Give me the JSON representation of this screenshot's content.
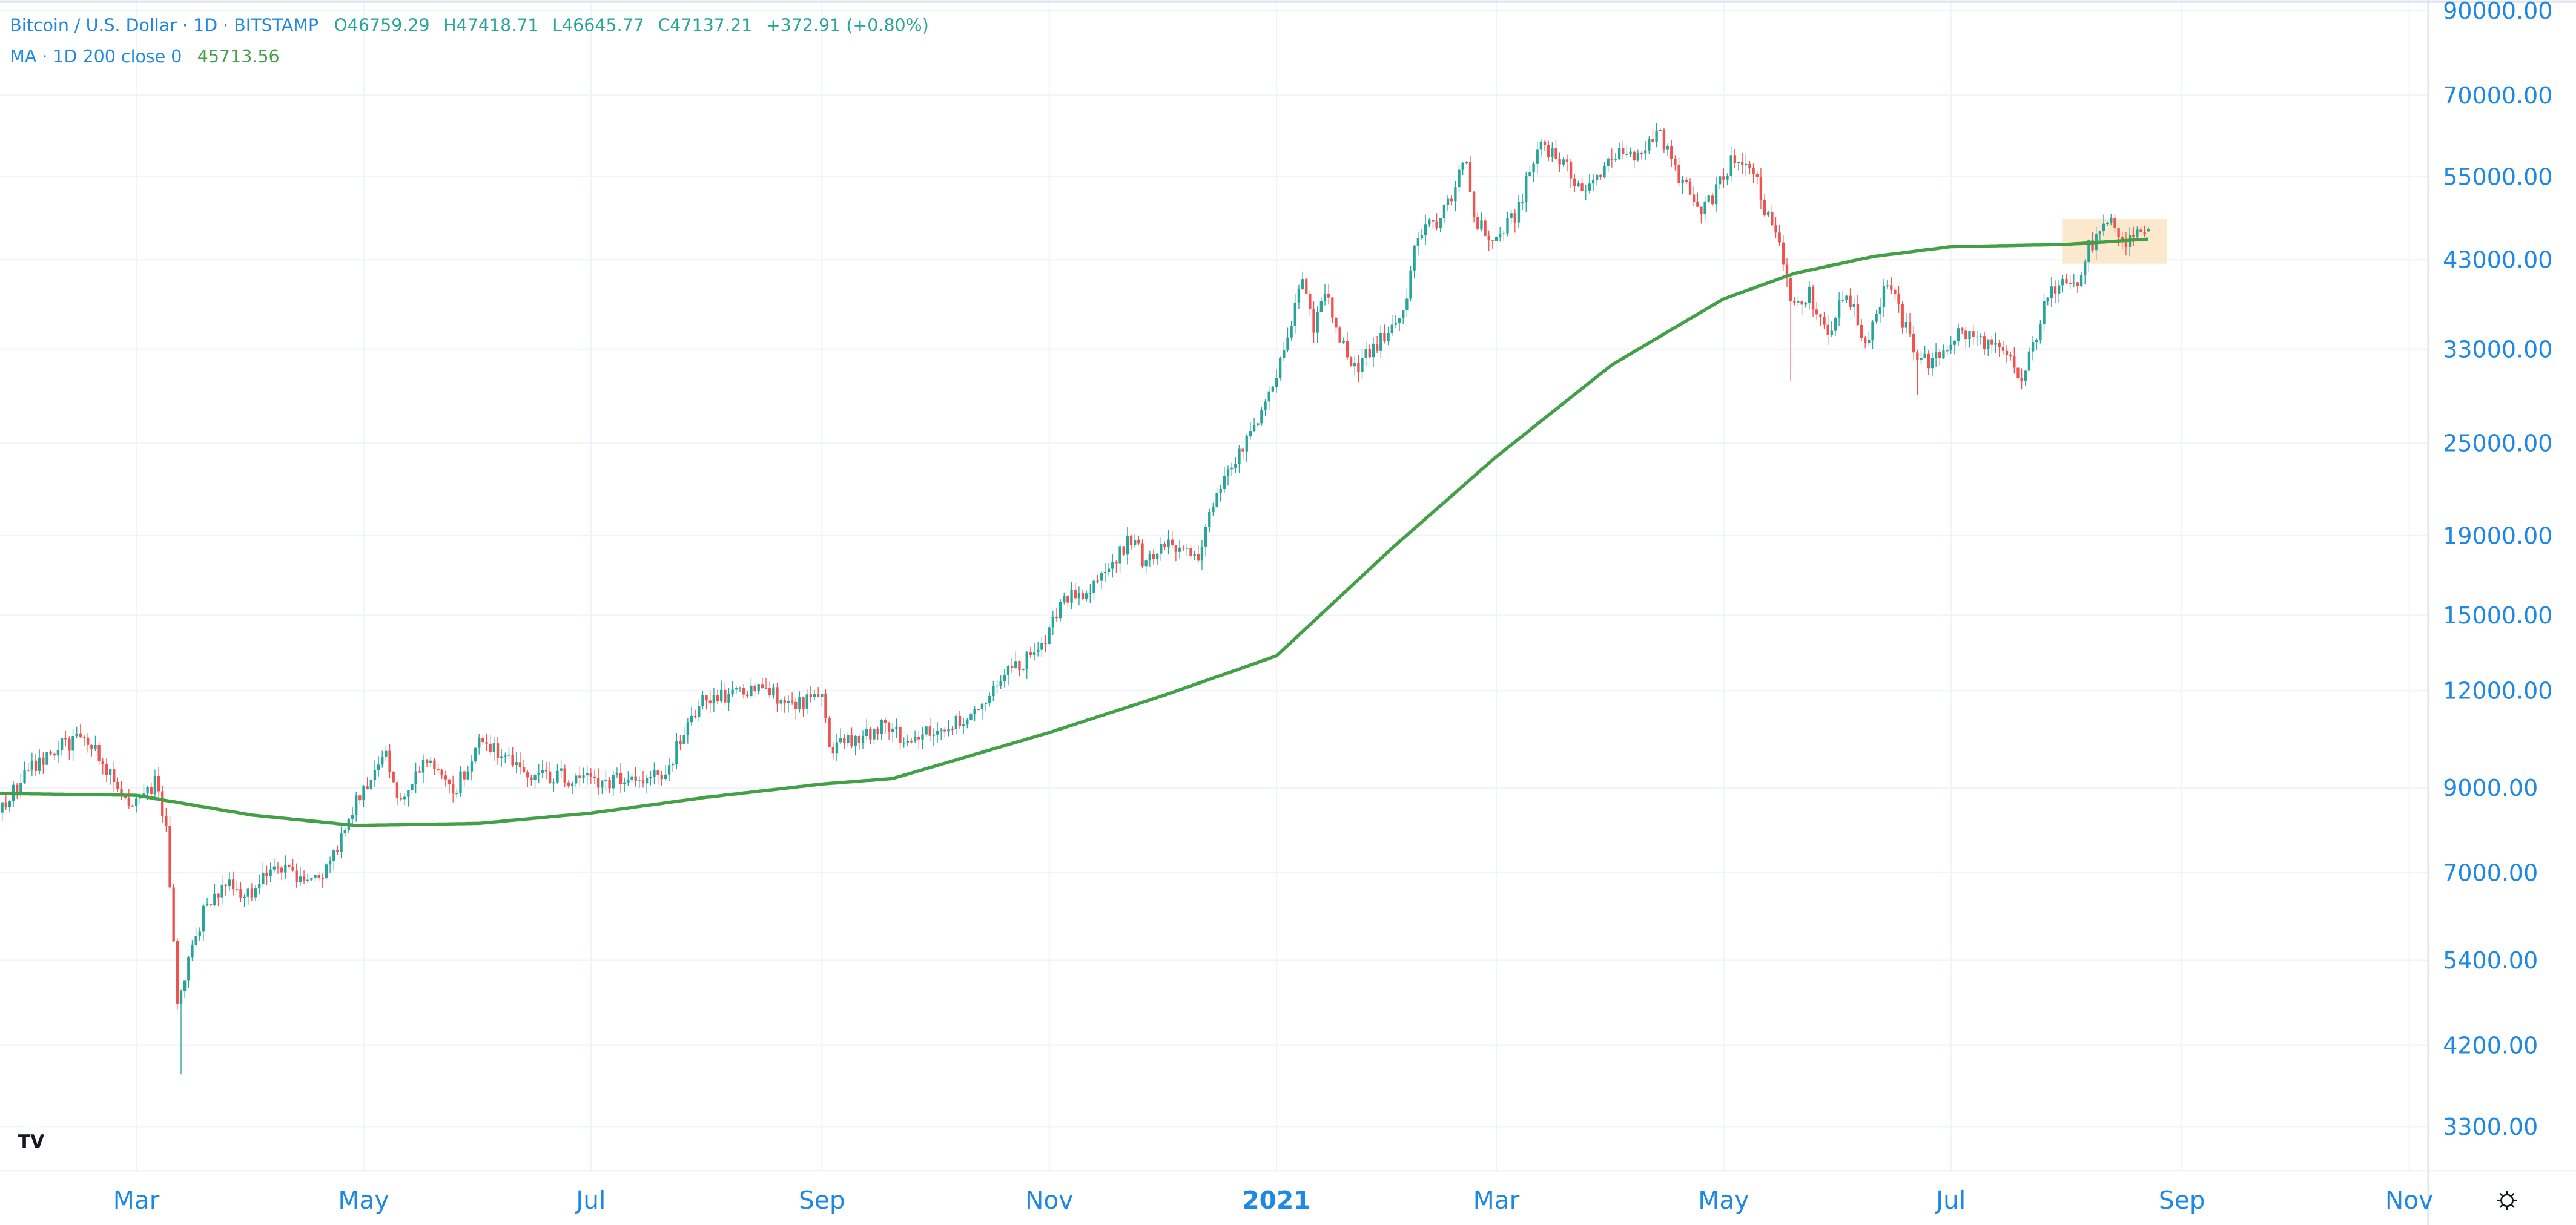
{
  "legend": {
    "symbol": "Bitcoin / U.S. Dollar · 1D · BITSTAMP",
    "open": "O46759.29",
    "high": "H47418.71",
    "low": "L46645.77",
    "close": "C47137.21",
    "change": "+372.91 (+0.80%)",
    "ma_label": "MA · 1D 200 close 0",
    "ma_value": "45713.56"
  },
  "colors": {
    "up": "#26a69a",
    "down": "#ef5350",
    "ma": "#43a047",
    "axis_text": "#1e88e5",
    "highlight": "#fce8cc",
    "grid": "#f0f3fa"
  },
  "icons": {
    "logo": "tradingview-logo-icon",
    "settings": "gear-icon"
  },
  "chart_data": {
    "type": "candlestick",
    "scale": "log",
    "ylim": [
      3000,
      92000
    ],
    "grid": true,
    "price_ticks": [
      "90000.00",
      "70000.00",
      "55000.00",
      "43000.00",
      "33000.00",
      "25000.00",
      "19000.00",
      "15000.00",
      "12000.00",
      "9000.00",
      "7000.00",
      "5400.00",
      "4200.00",
      "3300.00"
    ],
    "time_ticks": [
      {
        "label": "Mar",
        "date": "2020-03-01"
      },
      {
        "label": "May",
        "date": "2020-05-01"
      },
      {
        "label": "Jul",
        "date": "2020-07-01"
      },
      {
        "label": "Sep",
        "date": "2020-09-01"
      },
      {
        "label": "Nov",
        "date": "2020-11-01"
      },
      {
        "label": "2021",
        "date": "2021-01-01",
        "bold": true
      },
      {
        "label": "Mar",
        "date": "2021-03-01"
      },
      {
        "label": "May",
        "date": "2021-05-01"
      },
      {
        "label": "Jul",
        "date": "2021-07-01"
      },
      {
        "label": "Sep",
        "date": "2021-09-01"
      },
      {
        "label": "Nov",
        "date": "2021-11-01"
      }
    ],
    "close_series": [
      [
        "2020-01-24",
        8400
      ],
      [
        "2020-01-31",
        9350
      ],
      [
        "2020-02-09",
        10150
      ],
      [
        "2020-02-14",
        10350
      ],
      [
        "2020-02-19",
        10150
      ],
      [
        "2020-02-26",
        8800
      ],
      [
        "2020-03-01",
        8550
      ],
      [
        "2020-03-06",
        9100
      ],
      [
        "2020-03-09",
        7950
      ],
      [
        "2020-03-12",
        4850
      ],
      [
        "2020-03-15",
        5350
      ],
      [
        "2020-03-19",
        6200
      ],
      [
        "2020-03-25",
        6700
      ],
      [
        "2020-04-01",
        6650
      ],
      [
        "2020-04-07",
        7300
      ],
      [
        "2020-04-12",
        6900
      ],
      [
        "2020-04-22",
        7100
      ],
      [
        "2020-04-29",
        8750
      ],
      [
        "2020-05-07",
        9950
      ],
      [
        "2020-05-10",
        8750
      ],
      [
        "2020-05-18",
        9700
      ],
      [
        "2020-05-25",
        8900
      ],
      [
        "2020-06-01",
        10200
      ],
      [
        "2020-06-10",
        9800
      ],
      [
        "2020-06-15",
        9400
      ],
      [
        "2020-06-24",
        9300
      ],
      [
        "2020-07-01",
        9200
      ],
      [
        "2020-07-15",
        9200
      ],
      [
        "2020-07-22",
        9500
      ],
      [
        "2020-07-27",
        11000
      ],
      [
        "2020-08-01",
        11800
      ],
      [
        "2020-08-10",
        11900
      ],
      [
        "2020-08-17",
        12000
      ],
      [
        "2020-08-25",
        11500
      ],
      [
        "2020-09-01",
        11950
      ],
      [
        "2020-09-03",
        10200
      ],
      [
        "2020-09-10",
        10350
      ],
      [
        "2020-09-18",
        10950
      ],
      [
        "2020-09-23",
        10250
      ],
      [
        "2020-10-01",
        10650
      ],
      [
        "2020-10-08",
        10950
      ],
      [
        "2020-10-15",
        11450
      ],
      [
        "2020-10-21",
        12800
      ],
      [
        "2020-10-28",
        13300
      ],
      [
        "2020-11-05",
        15600
      ],
      [
        "2020-11-12",
        16300
      ],
      [
        "2020-11-19",
        17800
      ],
      [
        "2020-11-24",
        19150
      ],
      [
        "2020-11-26",
        17200
      ],
      [
        "2020-12-01",
        18800
      ],
      [
        "2020-12-11",
        18000
      ],
      [
        "2020-12-16",
        21300
      ],
      [
        "2020-12-20",
        23500
      ],
      [
        "2020-12-27",
        26300
      ],
      [
        "2021-01-03",
        32800
      ],
      [
        "2021-01-08",
        40600
      ],
      [
        "2021-01-11",
        35500
      ],
      [
        "2021-01-14",
        39100
      ],
      [
        "2021-01-21",
        30800
      ],
      [
        "2021-01-25",
        32300
      ],
      [
        "2021-01-28",
        33400
      ],
      [
        "2021-02-04",
        36900
      ],
      [
        "2021-02-08",
        46400
      ],
      [
        "2021-02-14",
        48600
      ],
      [
        "2021-02-21",
        57500
      ],
      [
        "2021-02-23",
        48800
      ],
      [
        "2021-02-28",
        45200
      ],
      [
        "2021-03-06",
        48900
      ],
      [
        "2021-03-13",
        61200
      ],
      [
        "2021-03-18",
        57800
      ],
      [
        "2021-03-25",
        52300
      ],
      [
        "2021-04-01",
        58800
      ],
      [
        "2021-04-08",
        58000
      ],
      [
        "2021-04-13",
        63500
      ],
      [
        "2021-04-18",
        56200
      ],
      [
        "2021-04-25",
        49000
      ],
      [
        "2021-05-03",
        57200
      ],
      [
        "2021-05-10",
        55800
      ],
      [
        "2021-05-12",
        49300
      ],
      [
        "2021-05-16",
        46400
      ],
      [
        "2021-05-19",
        38000
      ],
      [
        "2021-05-24",
        38800
      ],
      [
        "2021-05-29",
        34700
      ],
      [
        "2021-06-03",
        39200
      ],
      [
        "2021-06-08",
        33600
      ],
      [
        "2021-06-14",
        40500
      ],
      [
        "2021-06-18",
        35800
      ],
      [
        "2021-06-22",
        32500
      ],
      [
        "2021-06-26",
        31600
      ],
      [
        "2021-07-03",
        34700
      ],
      [
        "2021-07-10",
        33800
      ],
      [
        "2021-07-17",
        31800
      ],
      [
        "2021-07-20",
        29800
      ],
      [
        "2021-07-26",
        37300
      ],
      [
        "2021-07-31",
        41500
      ],
      [
        "2021-08-04",
        39700
      ],
      [
        "2021-08-07",
        44600
      ],
      [
        "2021-08-13",
        47800
      ],
      [
        "2021-08-17",
        44700
      ],
      [
        "2021-08-19",
        46700
      ],
      [
        "2021-08-23",
        47137.21
      ]
    ],
    "extreme_lows": [
      [
        "2020-03-13",
        3850
      ],
      [
        "2021-05-19",
        30000
      ],
      [
        "2021-06-22",
        28800
      ],
      [
        "2021-07-20",
        29300
      ]
    ],
    "last_candle": {
      "date": "2021-08-23",
      "open": 46759.29,
      "high": 47418.71,
      "low": 46645.77,
      "close": 47137.21
    },
    "ma_series": [
      [
        "2020-01-24",
        8850
      ],
      [
        "2020-03-01",
        8800
      ],
      [
        "2020-04-01",
        8300
      ],
      [
        "2020-04-29",
        8050
      ],
      [
        "2020-06-01",
        8100
      ],
      [
        "2020-07-01",
        8350
      ],
      [
        "2020-08-01",
        8750
      ],
      [
        "2020-09-01",
        9100
      ],
      [
        "2020-09-20",
        9250
      ],
      [
        "2020-11-01",
        10600
      ],
      [
        "2020-12-01",
        11800
      ],
      [
        "2021-01-01",
        13300
      ],
      [
        "2021-02-01",
        18300
      ],
      [
        "2021-03-01",
        24000
      ],
      [
        "2021-04-01",
        31500
      ],
      [
        "2021-05-01",
        38300
      ],
      [
        "2021-05-20",
        41300
      ],
      [
        "2021-06-10",
        43400
      ],
      [
        "2021-07-01",
        44700
      ],
      [
        "2021-08-01",
        45000
      ],
      [
        "2021-08-23",
        45713.56
      ]
    ],
    "highlight_range": {
      "from": "2021-07-31",
      "to": "2021-08-28",
      "low": 42500,
      "high": 48500
    }
  }
}
